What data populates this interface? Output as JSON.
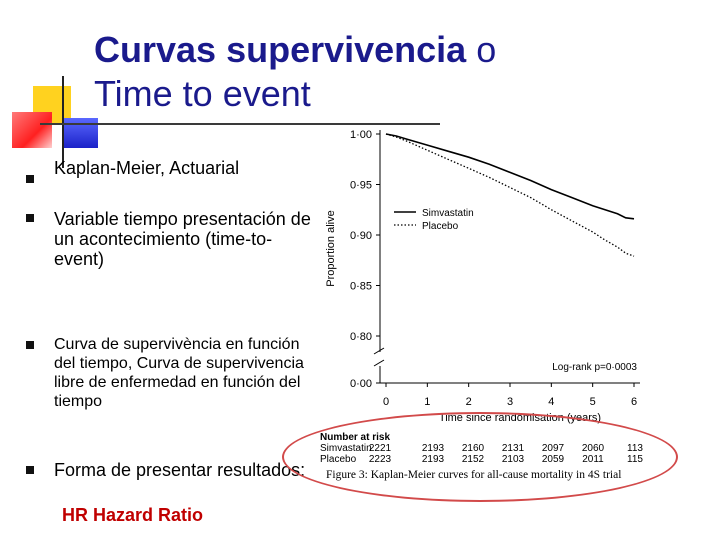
{
  "title": {
    "bold_part": "Curvas supervivencia",
    "rest_part": " o",
    "line2": "Time to event"
  },
  "bullets": [
    {
      "text": "Kaplan-Meier, Actuarial"
    },
    {
      "text": "Variable tiempo presentación de un acontecimiento (time-to-event)"
    },
    {
      "text": "Curva de supervivència en función del tiempo, Curva de supervivencia libre de enfermedad en función del tiempo"
    },
    {
      "text": "Forma de presentar resultados:"
    }
  ],
  "highlight": "HR Hazard Ratio",
  "colors": {
    "title": "#1a1a8c",
    "highlight": "#c00000",
    "ellipse": "#d24a4a"
  },
  "chart_data": {
    "type": "line",
    "xlabel": "Time since randomisation (years)",
    "ylabel": "Proportion alive",
    "xlim": [
      0,
      6
    ],
    "ylim": [
      0.8,
      1.0
    ],
    "x_ticks": [
      "0",
      "1",
      "2",
      "3",
      "4",
      "5",
      "6"
    ],
    "y_ticks": [
      "1·00",
      "0·95",
      "0·90",
      "0·85",
      "0·80",
      "0·00"
    ],
    "series": [
      {
        "name": "Simvastatin",
        "style": "solid",
        "x": [
          0,
          0.25,
          0.5,
          1,
          1.5,
          2,
          2.5,
          3,
          3.5,
          4,
          4.5,
          5,
          5.3,
          5.6,
          5.8,
          6.0
        ],
        "y": [
          1.0,
          0.998,
          0.995,
          0.989,
          0.983,
          0.977,
          0.97,
          0.962,
          0.954,
          0.945,
          0.937,
          0.929,
          0.925,
          0.921,
          0.917,
          0.916
        ]
      },
      {
        "name": "Placebo",
        "style": "dotted",
        "x": [
          0,
          0.25,
          0.5,
          1,
          1.5,
          2,
          2.5,
          3,
          3.5,
          4,
          4.5,
          5,
          5.3,
          5.6,
          5.8,
          6.0
        ],
        "y": [
          1.0,
          0.997,
          0.993,
          0.984,
          0.975,
          0.966,
          0.957,
          0.947,
          0.937,
          0.925,
          0.914,
          0.903,
          0.895,
          0.888,
          0.882,
          0.879
        ]
      }
    ],
    "annotation": "Log-rank p=0·0003",
    "number_at_risk": {
      "heading": "Number at risk",
      "rows": [
        {
          "label": "Simvastatin",
          "values": [
            "2221",
            "2193",
            "2160",
            "2131",
            "2097",
            "2060",
            "113"
          ]
        },
        {
          "label": "Placebo",
          "values": [
            "2223",
            "2193",
            "2152",
            "2103",
            "2059",
            "2011",
            "115"
          ]
        }
      ]
    },
    "caption": "Figure 3: Kaplan-Meier curves for all-cause mortality in 4S trial"
  }
}
